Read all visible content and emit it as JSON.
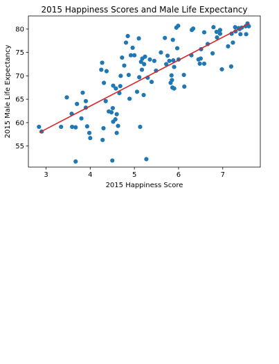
{
  "chart_data": {
    "type": "scatter",
    "title": "2015 Happiness Scores and Male Life Expectancy",
    "xlabel": "2015 Happiness Score",
    "ylabel": "2015 Male Life Expectancy",
    "xlim": [
      2.6,
      7.85
    ],
    "ylim": [
      50.5,
      82.8
    ],
    "xticks": [
      3,
      4,
      5,
      6,
      7
    ],
    "yticks": [
      55,
      60,
      65,
      70,
      75,
      80
    ],
    "grid": false,
    "colors": {
      "points": "#1f77b4",
      "trendline": "#d62728"
    },
    "trendline": {
      "x": [
        2.85,
        7.6
      ],
      "y": [
        57.9,
        81.2
      ]
    },
    "points": [
      {
        "x": 2.84,
        "y": 59.1
      },
      {
        "x": 2.9,
        "y": 58.1
      },
      {
        "x": 3.34,
        "y": 59.1
      },
      {
        "x": 3.47,
        "y": 65.4
      },
      {
        "x": 3.58,
        "y": 61.9
      },
      {
        "x": 3.59,
        "y": 59.1
      },
      {
        "x": 3.67,
        "y": 59.0
      },
      {
        "x": 3.67,
        "y": 51.7
      },
      {
        "x": 3.7,
        "y": 64.0
      },
      {
        "x": 3.8,
        "y": 60.9
      },
      {
        "x": 3.83,
        "y": 66.4
      },
      {
        "x": 3.9,
        "y": 64.6
      },
      {
        "x": 3.9,
        "y": 63.2
      },
      {
        "x": 3.93,
        "y": 59.2
      },
      {
        "x": 3.98,
        "y": 57.8
      },
      {
        "x": 4.0,
        "y": 56.7
      },
      {
        "x": 4.25,
        "y": 71.3
      },
      {
        "x": 4.27,
        "y": 72.8
      },
      {
        "x": 4.28,
        "y": 56.3
      },
      {
        "x": 4.3,
        "y": 58.8
      },
      {
        "x": 4.31,
        "y": 68.5
      },
      {
        "x": 4.35,
        "y": 64.6
      },
      {
        "x": 4.37,
        "y": 71.0
      },
      {
        "x": 4.42,
        "y": 62.4
      },
      {
        "x": 4.48,
        "y": 62.2
      },
      {
        "x": 4.5,
        "y": 51.9
      },
      {
        "x": 4.51,
        "y": 63.1
      },
      {
        "x": 4.52,
        "y": 60.2
      },
      {
        "x": 4.52,
        "y": 67.9
      },
      {
        "x": 4.57,
        "y": 60.7
      },
      {
        "x": 4.58,
        "y": 67.3
      },
      {
        "x": 4.6,
        "y": 57.8
      },
      {
        "x": 4.6,
        "y": 61.8
      },
      {
        "x": 4.63,
        "y": 59.3
      },
      {
        "x": 4.66,
        "y": 66.3
      },
      {
        "x": 4.68,
        "y": 67.8
      },
      {
        "x": 4.69,
        "y": 70.0
      },
      {
        "x": 4.72,
        "y": 73.9
      },
      {
        "x": 4.77,
        "y": 72.2
      },
      {
        "x": 4.81,
        "y": 77.1
      },
      {
        "x": 4.85,
        "y": 78.5
      },
      {
        "x": 4.87,
        "y": 70.2
      },
      {
        "x": 4.89,
        "y": 65.1
      },
      {
        "x": 4.92,
        "y": 74.4
      },
      {
        "x": 4.96,
        "y": 76.0
      },
      {
        "x": 5.0,
        "y": 74.4
      },
      {
        "x": 5.06,
        "y": 66.6
      },
      {
        "x": 5.1,
        "y": 78.0
      },
      {
        "x": 5.11,
        "y": 69.7
      },
      {
        "x": 5.13,
        "y": 59.1
      },
      {
        "x": 5.15,
        "y": 73.0
      },
      {
        "x": 5.17,
        "y": 71.3
      },
      {
        "x": 5.18,
        "y": 73.7
      },
      {
        "x": 5.21,
        "y": 65.9
      },
      {
        "x": 5.22,
        "y": 72.5
      },
      {
        "x": 5.24,
        "y": 74.1
      },
      {
        "x": 5.27,
        "y": 52.2
      },
      {
        "x": 5.3,
        "y": 69.6
      },
      {
        "x": 5.35,
        "y": 73.5
      },
      {
        "x": 5.39,
        "y": 68.7
      },
      {
        "x": 5.45,
        "y": 73.2
      },
      {
        "x": 5.49,
        "y": 71.1
      },
      {
        "x": 5.6,
        "y": 75.0
      },
      {
        "x": 5.69,
        "y": 78.1
      },
      {
        "x": 5.72,
        "y": 72.5
      },
      {
        "x": 5.75,
        "y": 74.3
      },
      {
        "x": 5.79,
        "y": 73.2
      },
      {
        "x": 5.82,
        "y": 68.5
      },
      {
        "x": 5.84,
        "y": 70.1
      },
      {
        "x": 5.85,
        "y": 69.1
      },
      {
        "x": 5.86,
        "y": 67.5
      },
      {
        "x": 5.87,
        "y": 77.7
      },
      {
        "x": 5.88,
        "y": 73.3
      },
      {
        "x": 5.9,
        "y": 71.9
      },
      {
        "x": 5.9,
        "y": 67.3
      },
      {
        "x": 5.95,
        "y": 80.3
      },
      {
        "x": 5.97,
        "y": 75.9
      },
      {
        "x": 5.99,
        "y": 80.7
      },
      {
        "x": 6.0,
        "y": 73.5
      },
      {
        "x": 6.12,
        "y": 70.2
      },
      {
        "x": 6.13,
        "y": 67.7
      },
      {
        "x": 6.29,
        "y": 74.4
      },
      {
        "x": 6.3,
        "y": 79.8
      },
      {
        "x": 6.33,
        "y": 80.1
      },
      {
        "x": 6.45,
        "y": 73.5
      },
      {
        "x": 6.48,
        "y": 72.6
      },
      {
        "x": 6.5,
        "y": 73.7
      },
      {
        "x": 6.51,
        "y": 75.7
      },
      {
        "x": 6.58,
        "y": 72.6
      },
      {
        "x": 6.58,
        "y": 79.3
      },
      {
        "x": 6.66,
        "y": 76.8
      },
      {
        "x": 6.77,
        "y": 74.8
      },
      {
        "x": 6.79,
        "y": 80.4
      },
      {
        "x": 6.86,
        "y": 79.4
      },
      {
        "x": 6.87,
        "y": 78.2
      },
      {
        "x": 6.94,
        "y": 79.0
      },
      {
        "x": 6.94,
        "y": 79.8
      },
      {
        "x": 6.98,
        "y": 71.4
      },
      {
        "x": 7.12,
        "y": 76.3
      },
      {
        "x": 7.19,
        "y": 72.0
      },
      {
        "x": 7.2,
        "y": 79.0
      },
      {
        "x": 7.23,
        "y": 77.1
      },
      {
        "x": 7.28,
        "y": 80.4
      },
      {
        "x": 7.29,
        "y": 79.5
      },
      {
        "x": 7.36,
        "y": 80.2
      },
      {
        "x": 7.38,
        "y": 80.0
      },
      {
        "x": 7.4,
        "y": 78.9
      },
      {
        "x": 7.43,
        "y": 80.3
      },
      {
        "x": 7.52,
        "y": 80.6
      },
      {
        "x": 7.53,
        "y": 78.9
      },
      {
        "x": 7.56,
        "y": 81.2
      },
      {
        "x": 7.59,
        "y": 80.6
      }
    ]
  }
}
